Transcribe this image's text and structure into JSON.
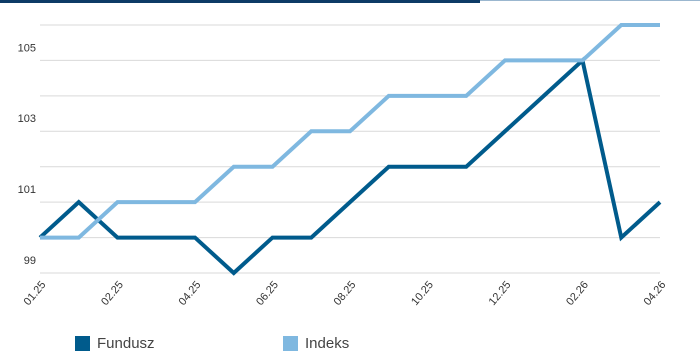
{
  "chart_data": {
    "type": "line",
    "categories": [
      "01.25",
      null,
      "02.25",
      null,
      "04.25",
      null,
      "06.25",
      null,
      "08.25",
      null,
      "10.25",
      null,
      "12.25",
      null,
      "02.26",
      null,
      "04.26"
    ],
    "series": [
      {
        "name": "Fundusz",
        "color": "#005b8c",
        "values": [
          100,
          101,
          100,
          100,
          100,
          99,
          100,
          100,
          101,
          102,
          102,
          102,
          103,
          104,
          105,
          100,
          101
        ]
      },
      {
        "name": "Indeks",
        "color": "#7fb8e0",
        "values": [
          100,
          100,
          101,
          101,
          101,
          102,
          102,
          103,
          103,
          104,
          104,
          104,
          105,
          105,
          105,
          106,
          106
        ]
      }
    ],
    "ylim": [
      99,
      106
    ],
    "yticks": [
      99,
      101,
      103,
      105
    ],
    "minor_yticks": [
      100,
      102,
      104,
      106
    ],
    "grid": true,
    "legend": "bottom"
  }
}
